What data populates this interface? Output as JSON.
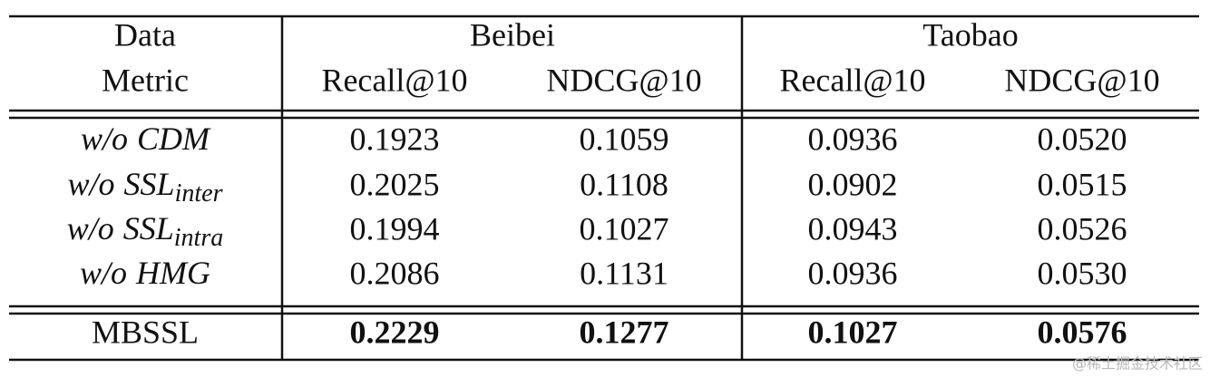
{
  "header": {
    "data_label": "Data",
    "metric_label": "Metric",
    "datasets": [
      {
        "name": "Beibei",
        "metrics": [
          "Recall@10",
          "NDCG@10"
        ]
      },
      {
        "name": "Taobao",
        "metrics": [
          "Recall@10",
          "NDCG@10"
        ]
      }
    ]
  },
  "rows": [
    {
      "label": {
        "prefix": "w/o",
        "name": "CDM"
      },
      "values": [
        "0.1923",
        "0.1059",
        "0.0936",
        "0.0520"
      ]
    },
    {
      "label": {
        "prefix": "w/o",
        "name": "SSL",
        "sub": "inter"
      },
      "values": [
        "0.2025",
        "0.1108",
        "0.0902",
        "0.0515"
      ]
    },
    {
      "label": {
        "prefix": "w/o",
        "name": "SSL",
        "sub": "intra"
      },
      "values": [
        "0.1994",
        "0.1027",
        "0.0943",
        "0.0526"
      ]
    },
    {
      "label": {
        "prefix": "w/o",
        "name": "HMG"
      },
      "values": [
        "0.2086",
        "0.1131",
        "0.0936",
        "0.0530"
      ]
    }
  ],
  "best": {
    "label": "MBSSL",
    "values": [
      "0.2229",
      "0.1277",
      "0.1027",
      "0.0576"
    ]
  },
  "watermark": "@稀土掘金技术社区"
}
